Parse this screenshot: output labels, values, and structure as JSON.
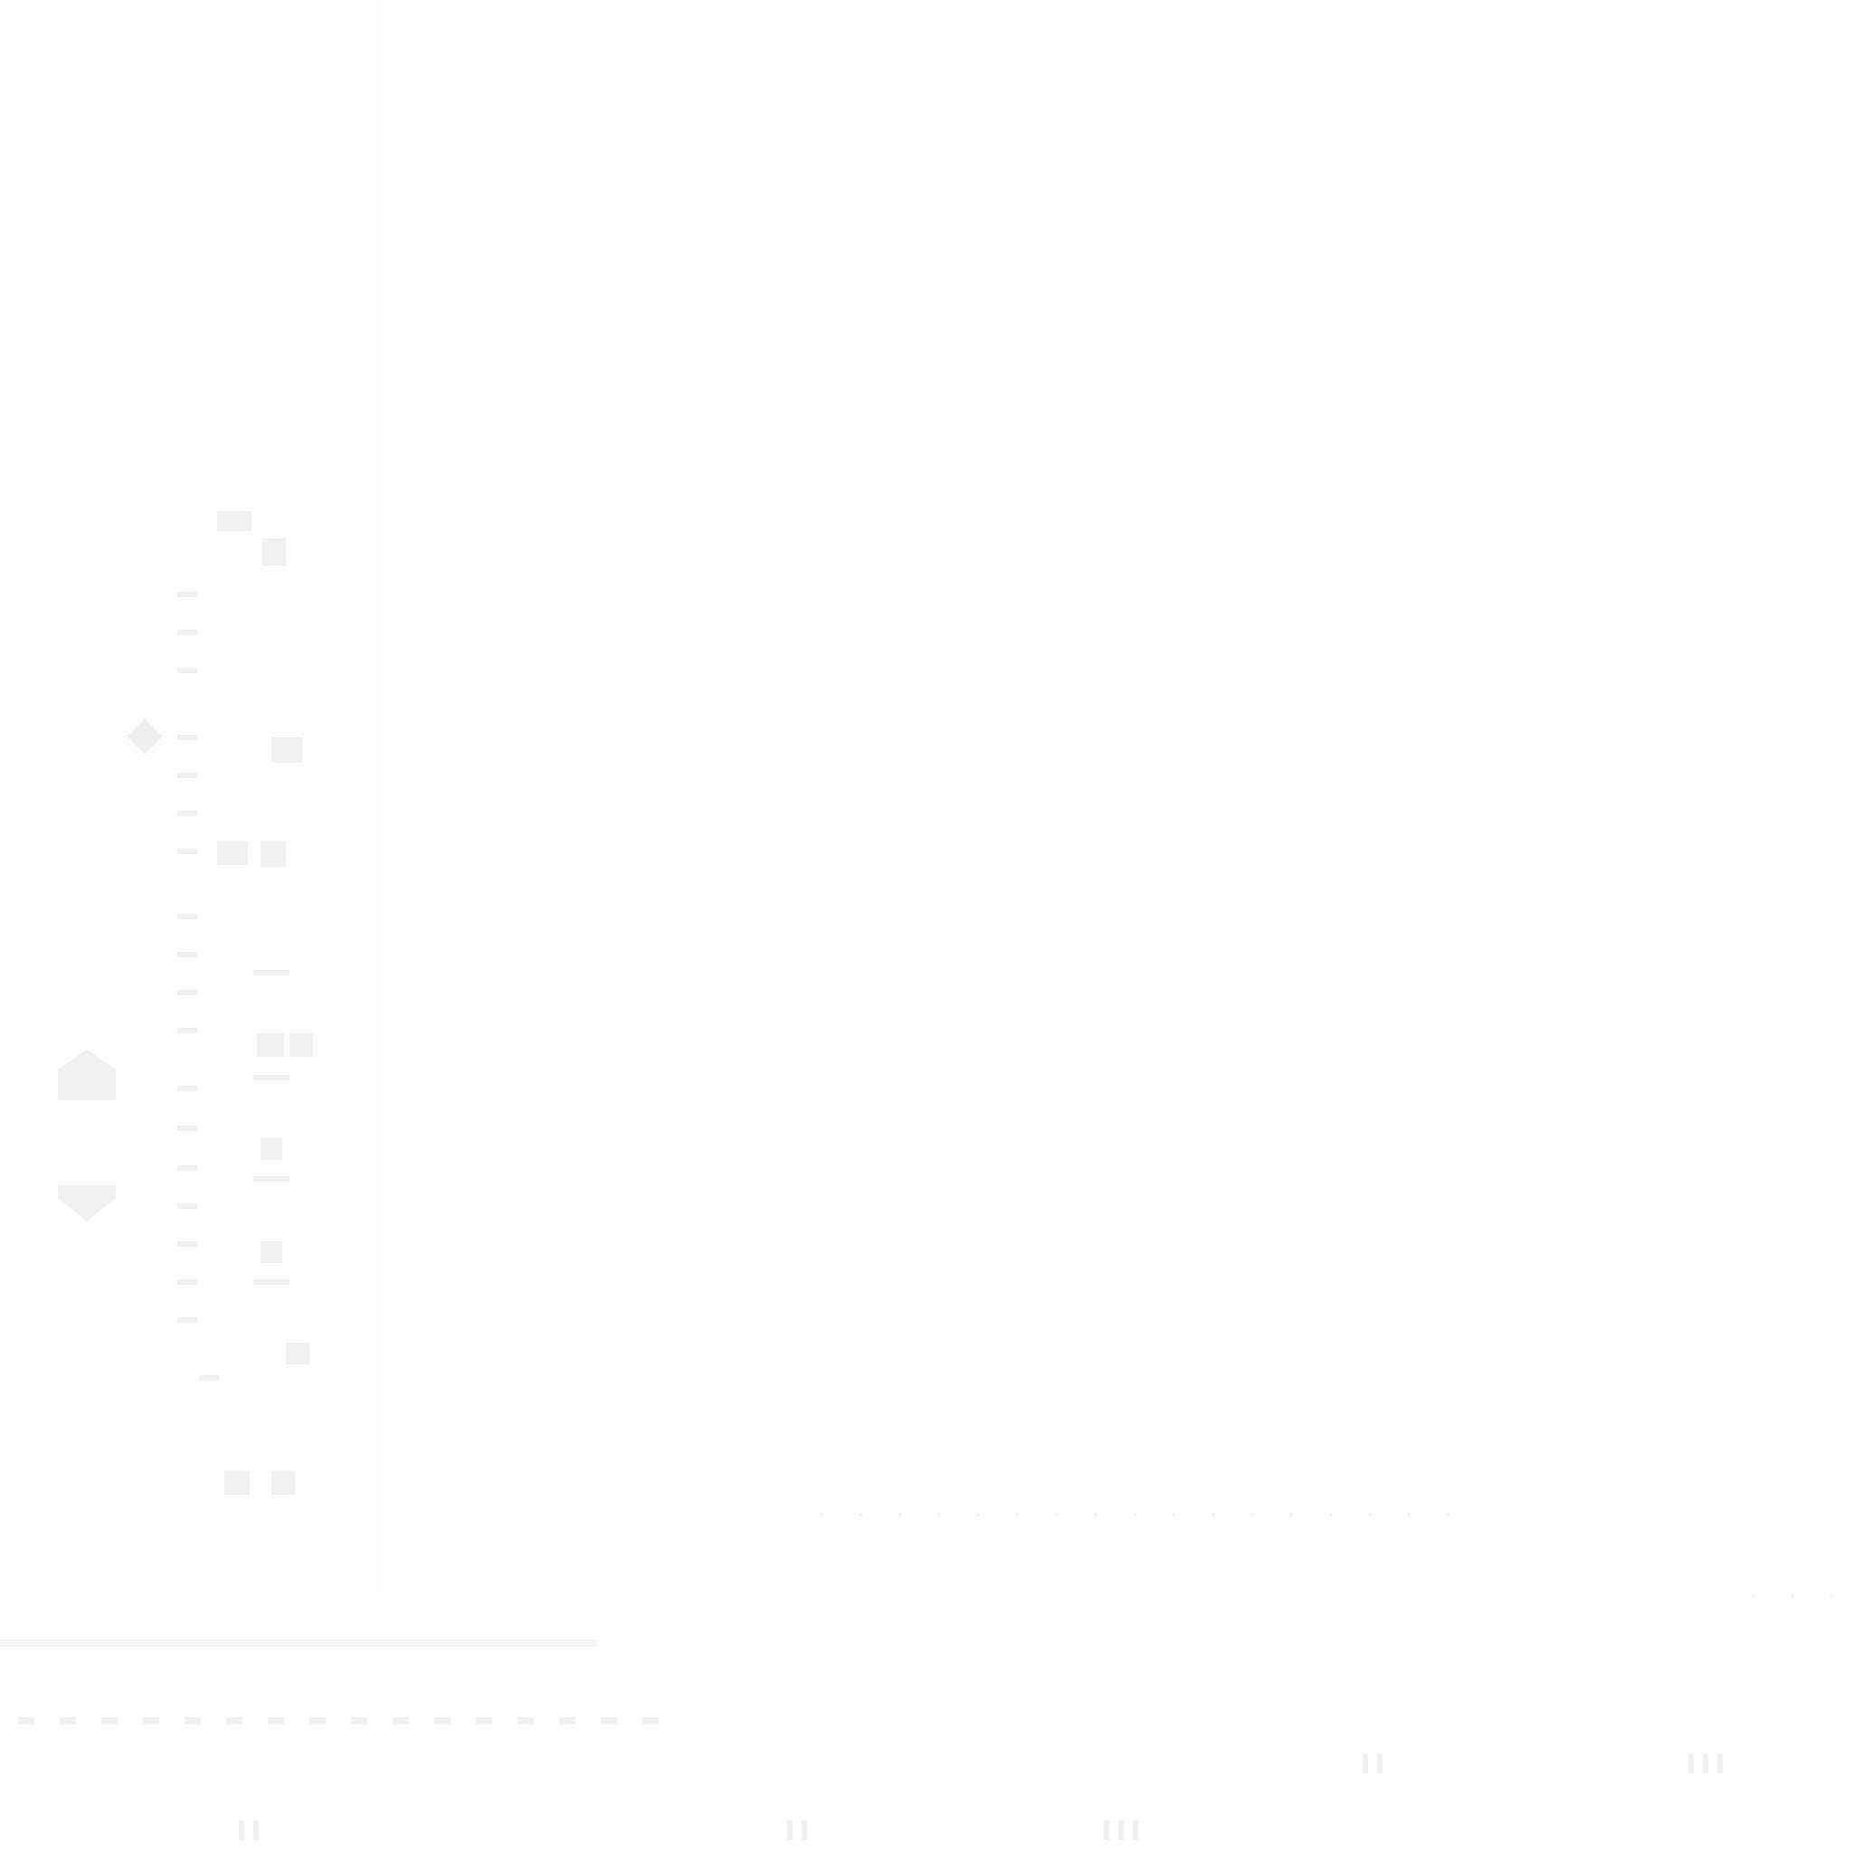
{
  "screen": {
    "background_color": "#ffffff",
    "artifact_color": "#f1f1f1"
  },
  "icons": {
    "up": "arrow-up-icon",
    "down": "arrow-down-icon",
    "diamond": "diamond-icon"
  }
}
